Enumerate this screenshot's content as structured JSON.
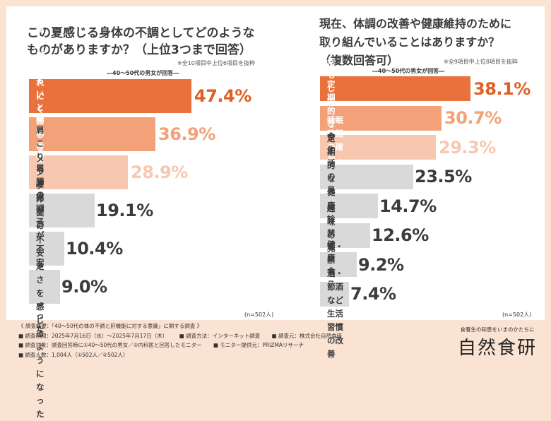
{
  "colors": {
    "background": "#fbe3d3",
    "card": "#ffffff",
    "top1": "#e9713b",
    "top2": "#f3a178",
    "top3": "#f8c7b0",
    "other": "#d9d9d9"
  },
  "chart_data": [
    {
      "type": "bar",
      "orientation": "horizontal",
      "title": "この夏感じる身体の不調としてどのような\nものがありますか？（上位3つまで回答）",
      "note": "※全10項目中上位6項目を抜粋",
      "subtitle": "―40～50代の男女が回答―",
      "sample": "(n=502人)",
      "categories": [
        "疲れがとれにくくなった",
        "体がだるいと感じることが\n増えた",
        "睡眠の質が下がった",
        "肩こりや腰痛がひどくなった",
        "胃腸の調子が不安定になった",
        "メンタル面の不安定さを\n感じるようになった"
      ],
      "values": [
        47.4,
        36.9,
        28.9,
        19.1,
        10.4,
        9.0
      ],
      "labels": [
        "47.4%",
        "36.9%",
        "28.9%",
        "19.1%",
        "10.4%",
        "9.0%"
      ],
      "unit": "%",
      "xlim": [
        0,
        100
      ]
    },
    {
      "type": "bar",
      "orientation": "horizontal",
      "title": "現在、体調の改善や健康維持のために\n取り組んでいることはありますか？\n（複数回答可）",
      "note": "※全9項目中上位8項目を抜粋",
      "subtitle": "―40～50代の男女が回答―",
      "sample": "(n=502人)",
      "categories": [
        "特に何もしていない",
        "定期的な運動",
        "睡眠時間の確保・改善",
        "食生活の見直し",
        "定期的な健康診断の受診",
        "趣味の充実",
        "健康食品",
        "禁煙・禁酒・節酒など\n生活習慣の改善"
      ],
      "values": [
        38.1,
        30.7,
        29.3,
        23.5,
        14.7,
        12.6,
        9.2,
        7.4
      ],
      "labels": [
        "38.1%",
        "30.7%",
        "29.3%",
        "23.5%",
        "14.7%",
        "12.6%",
        "9.2%",
        "7.4%"
      ],
      "unit": "%",
      "xlim": [
        0,
        100
      ]
    }
  ],
  "footer": {
    "overview": "《 調査概要：「40～50代の体の不調と肝機能に対する意識」に関する調査 》",
    "period": "■ 調査期間：2025年7月16日（水）～2025年7月17日（木）",
    "method": "■ 調査方法：インターネット調査",
    "source": "■ 調査元：株式会社自然食研",
    "target": "■ 調査対象：調査回答時に①40～50代の男女／②内科医と回答したモニター",
    "provider": "■ モニター提供元：PRIZMAリサーチ",
    "count": "■ 調査人数：1,004人（①502人／②502人）"
  },
  "brand": {
    "tagline": "食養生の知恵をいまのかたちに",
    "name": "自然食研"
  }
}
